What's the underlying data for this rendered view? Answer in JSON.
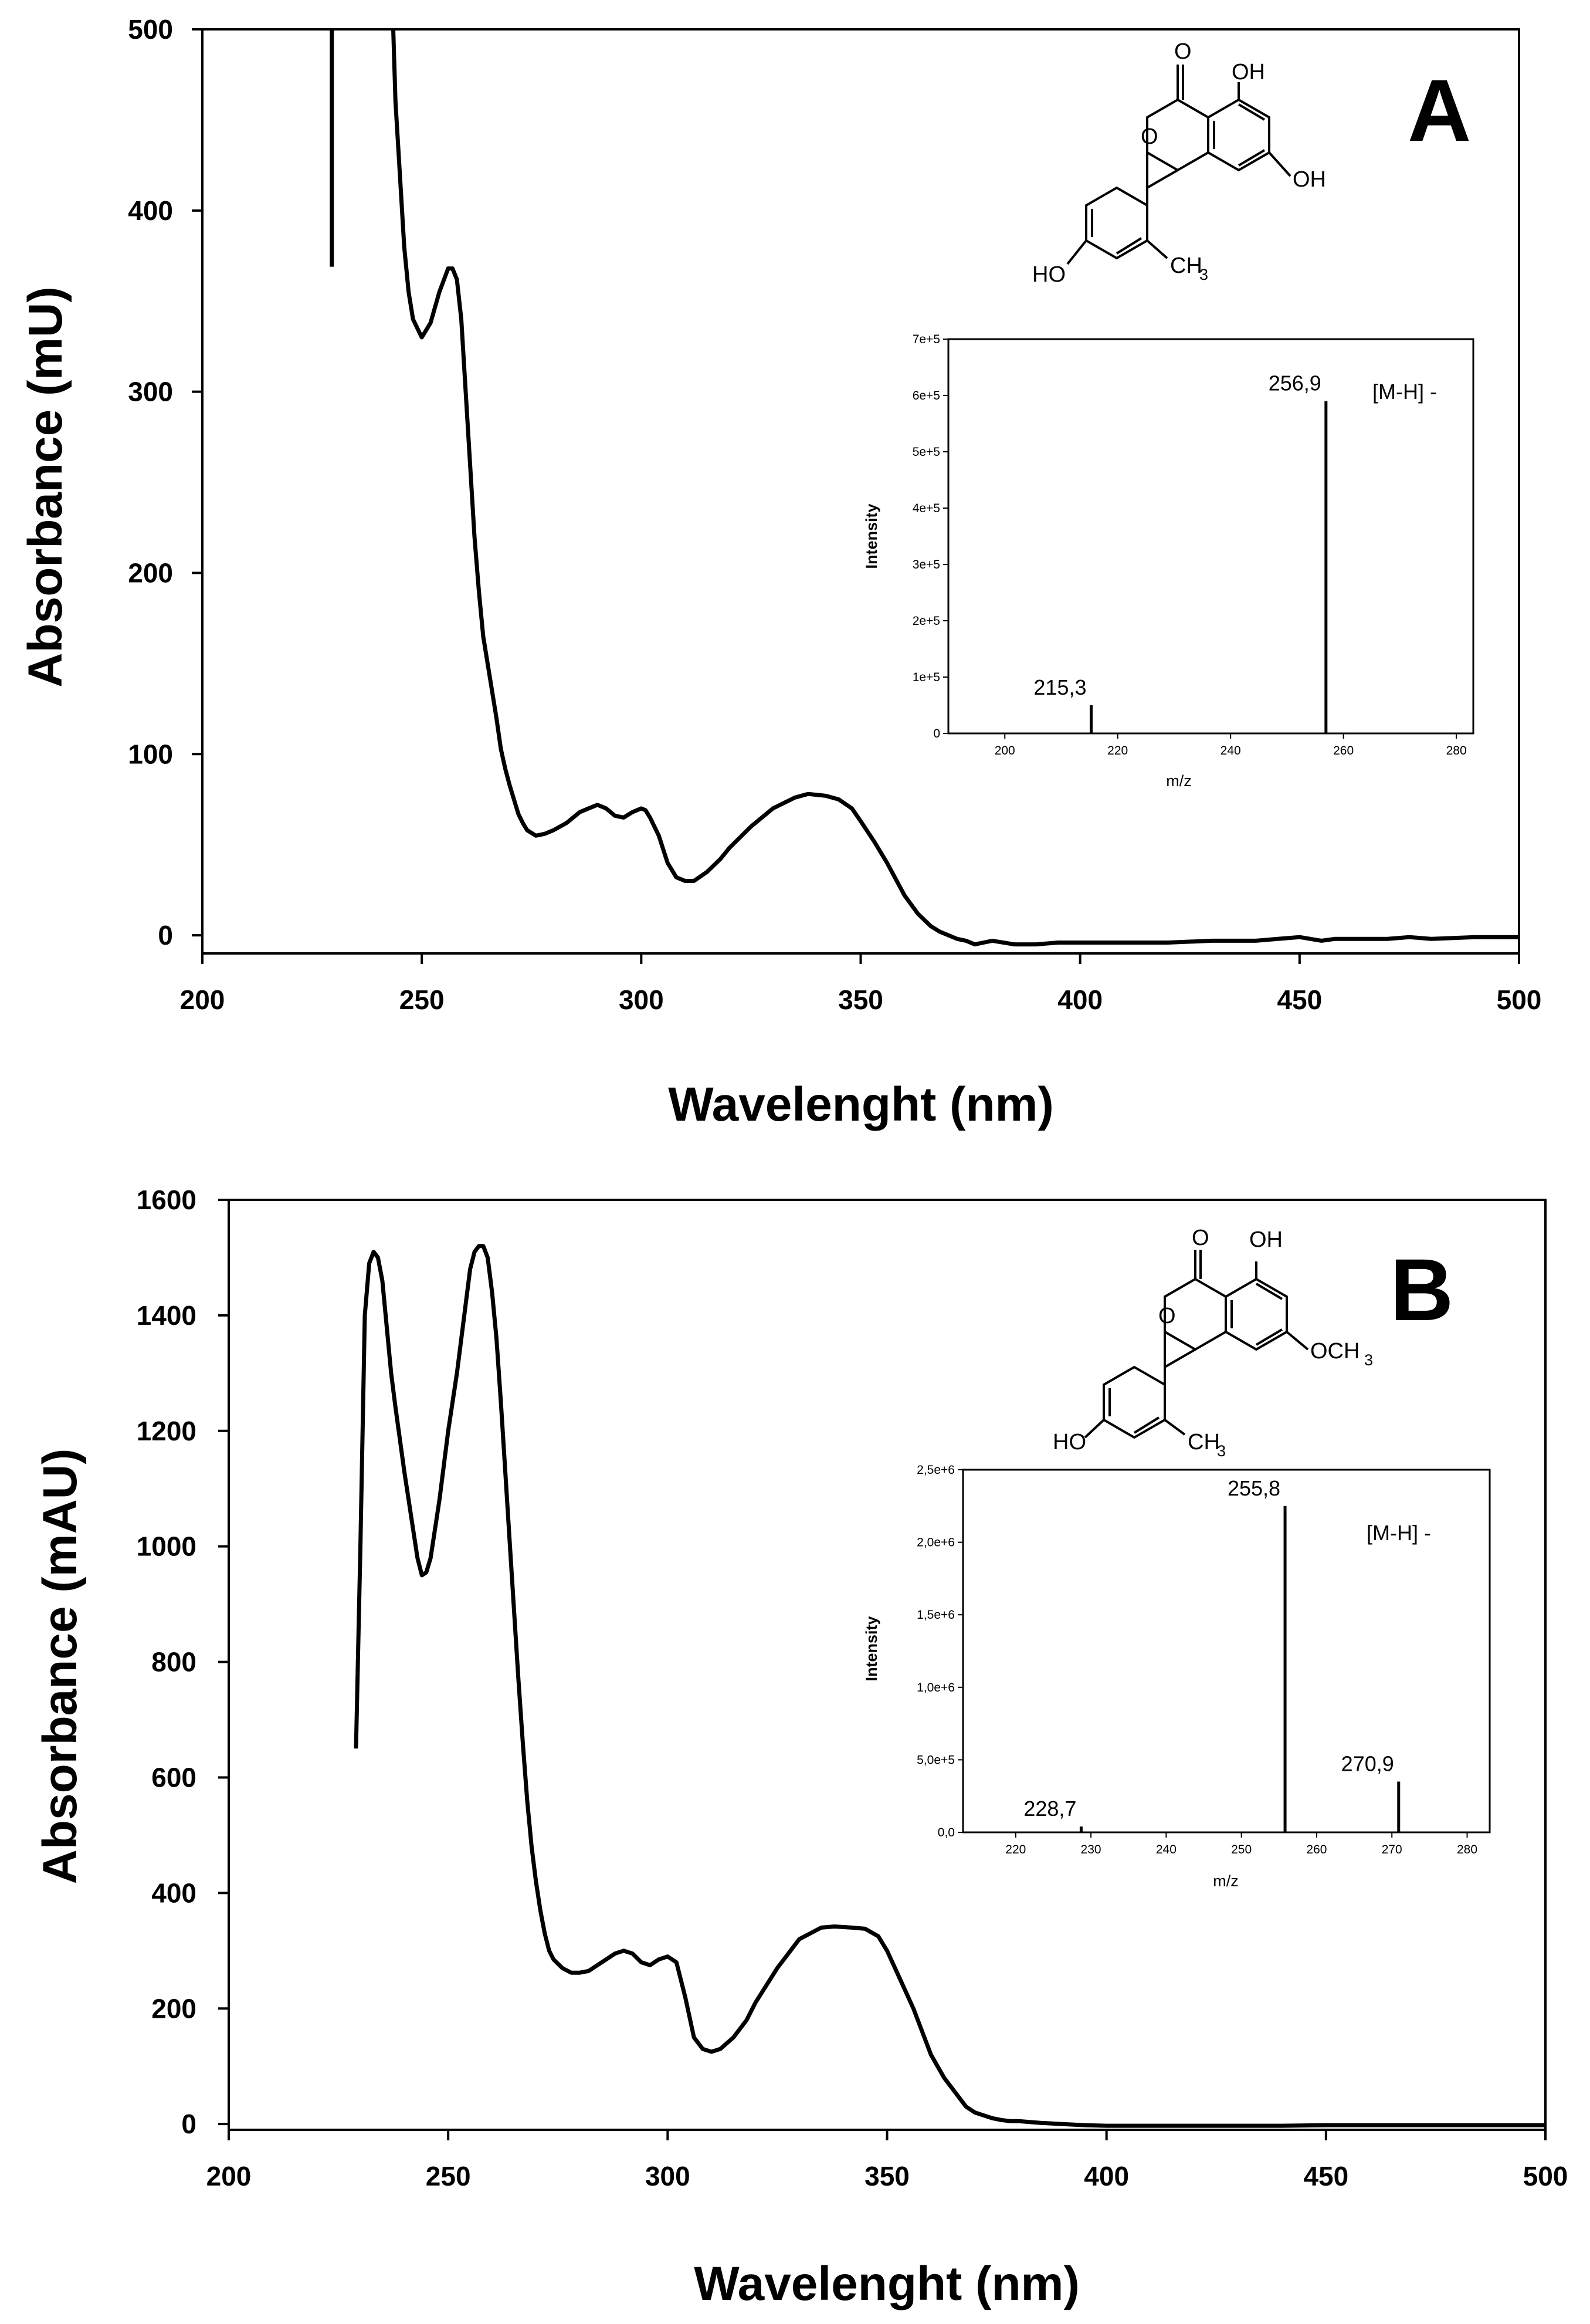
{
  "panels": [
    {
      "label": "A",
      "chart_data": {
        "type": "line",
        "title": "",
        "xlabel": "Wavelenght (nm)",
        "ylabel": "Absorbance (mU)",
        "xlim": [
          200,
          500
        ],
        "ylim": [
          -10,
          500
        ],
        "x_ticks": [
          "200",
          "250",
          "300",
          "350",
          "400",
          "450",
          "500"
        ],
        "y_ticks": [
          "0",
          "100",
          "200",
          "300",
          "400",
          "500"
        ],
        "x_tick_values": [
          200,
          250,
          300,
          350,
          400,
          450,
          500
        ],
        "y_tick_values": [
          0,
          100,
          200,
          300,
          400,
          500
        ],
        "series": [
          {
            "name": "UV spectrum (vertical trace)",
            "x": [
              229.5,
              229.5
            ],
            "y": [
              369,
              500
            ]
          },
          {
            "name": "UV spectrum",
            "x": [
              243.5,
              244,
              245,
              246,
              247,
              248,
              249,
              250,
              252,
              254,
              256,
              257,
              258,
              259,
              260,
              261,
              262,
              263,
              264,
              265,
              266,
              267,
              268,
              269,
              270,
              271,
              272,
              273,
              274,
              276,
              278,
              280,
              283,
              286,
              288,
              290,
              292,
              294,
              296,
              298,
              300,
              301,
              302,
              304,
              306,
              308,
              310,
              312,
              315,
              318,
              320,
              325,
              330,
              335,
              338,
              342,
              345,
              348,
              350,
              353,
              356,
              360,
              363,
              366,
              368,
              370,
              372,
              374,
              375,
              376,
              378,
              380,
              385,
              390,
              395,
              400,
              410,
              420,
              430,
              440,
              445,
              450,
              455,
              458,
              460,
              470,
              475,
              480,
              490,
              495,
              500
            ],
            "y": [
              500,
              460,
              420,
              380,
              355,
              340,
              335,
              330,
              338,
              355,
              368,
              368,
              362,
              340,
              300,
              260,
              220,
              190,
              165,
              150,
              135,
              120,
              103,
              92,
              83,
              75,
              67,
              62,
              58,
              55,
              56,
              58,
              62,
              68,
              70,
              72,
              70,
              66,
              65,
              68,
              70,
              69,
              65,
              55,
              40,
              32,
              30,
              30,
              35,
              42,
              48,
              60,
              70,
              76,
              78,
              77,
              75,
              70,
              63,
              52,
              40,
              22,
              12,
              5,
              2,
              0,
              -2,
              -3,
              -4,
              -5,
              -4,
              -3,
              -5,
              -5,
              -4,
              -4,
              -4,
              -4,
              -3,
              -3,
              -2,
              -1,
              -3,
              -2,
              -2,
              -2,
              -1,
              -2,
              -1,
              -1,
              -1
            ]
          }
        ],
        "inset": {
          "type": "bar",
          "xlabel": "m/z",
          "ylabel": "Intensity",
          "xlim": [
            190,
            283
          ],
          "ylim": [
            0,
            700000
          ],
          "x_ticks": [
            "200",
            "220",
            "240",
            "260",
            "280"
          ],
          "x_tick_values": [
            200,
            220,
            240,
            260,
            280
          ],
          "y_ticks": [
            "0",
            "1e+5",
            "2e+5",
            "3e+5",
            "4e+5",
            "5e+5",
            "6e+5",
            "7e+5"
          ],
          "y_tick_values": [
            0,
            100000,
            200000,
            300000,
            400000,
            500000,
            600000,
            700000
          ],
          "peaks": [
            {
              "mz": 215.3,
              "intensity": 50000,
              "label": "215,3"
            },
            {
              "mz": 256.9,
              "intensity": 590000,
              "label": "256,9"
            }
          ],
          "ion_label": "[M-H] -"
        }
      },
      "structure": {
        "labels": [
          "O",
          "O",
          "OH",
          "OH",
          "HO",
          "CH",
          "3"
        ]
      }
    },
    {
      "label": "B",
      "chart_data": {
        "type": "line",
        "title": "",
        "xlabel": "Wavelenght (nm)",
        "ylabel": "Absorbance (mAU)",
        "xlim": [
          200,
          500
        ],
        "ylim": [
          -10,
          1600
        ],
        "x_ticks": [
          "200",
          "250",
          "300",
          "350",
          "400",
          "450",
          "500"
        ],
        "y_ticks": [
          "0",
          "200",
          "400",
          "600",
          "800",
          "1000",
          "1200",
          "1400",
          "1600"
        ],
        "x_tick_values": [
          200,
          250,
          300,
          350,
          400,
          450,
          500
        ],
        "y_tick_values": [
          0,
          200,
          400,
          600,
          800,
          1000,
          1200,
          1400,
          1600
        ],
        "series": [
          {
            "name": "UV spectrum",
            "x": [
              229,
              230,
              231,
              232,
              233,
              234,
              235,
              236,
              237,
              238,
              240,
              242,
              243,
              244,
              245,
              246,
              248,
              250,
              252,
              254,
              255,
              256,
              257,
              258,
              259,
              260,
              261,
              262,
              263,
              264,
              265,
              266,
              267,
              268,
              269,
              270,
              271,
              272,
              273,
              274,
              276,
              278,
              280,
              282,
              284,
              286,
              288,
              290,
              292,
              294,
              296,
              298,
              300,
              302,
              304,
              306,
              308,
              310,
              312,
              315,
              318,
              320,
              325,
              330,
              335,
              338,
              342,
              345,
              348,
              350,
              353,
              356,
              360,
              363,
              366,
              368,
              370,
              372,
              374,
              376,
              378,
              380,
              385,
              390,
              395,
              400,
              410,
              420,
              430,
              440,
              450,
              460,
              470,
              480,
              490,
              495,
              500
            ],
            "y": [
              650,
              1000,
              1400,
              1490,
              1510,
              1500,
              1460,
              1380,
              1300,
              1240,
              1130,
              1030,
              980,
              950,
              955,
              980,
              1080,
              1200,
              1300,
              1420,
              1480,
              1510,
              1520,
              1520,
              1500,
              1440,
              1360,
              1250,
              1130,
              1010,
              890,
              770,
              660,
              560,
              480,
              420,
              370,
              330,
              300,
              285,
              270,
              262,
              262,
              265,
              275,
              285,
              295,
              300,
              295,
              280,
              275,
              285,
              290,
              280,
              220,
              150,
              130,
              125,
              130,
              150,
              180,
              210,
              270,
              320,
              340,
              342,
              340,
              338,
              325,
              300,
              250,
              200,
              120,
              80,
              50,
              30,
              20,
              15,
              10,
              7,
              5,
              5,
              2,
              0,
              -2,
              -3,
              -3,
              -3,
              -3,
              -3,
              -2,
              -2,
              -2,
              -2,
              -2,
              -2,
              -2
            ]
          }
        ],
        "inset": {
          "type": "bar",
          "xlabel": "m/z",
          "ylabel": "Intensity",
          "xlim": [
            213,
            283
          ],
          "ylim": [
            0,
            2500000
          ],
          "x_ticks": [
            "220",
            "230",
            "240",
            "250",
            "260",
            "270",
            "280"
          ],
          "x_tick_values": [
            220,
            230,
            240,
            250,
            260,
            270,
            280
          ],
          "y_ticks": [
            "0,0",
            "5,0e+5",
            "1,0e+6",
            "1,5e+6",
            "2,0e+6",
            "2,5e+6"
          ],
          "y_tick_values": [
            0,
            500000,
            1000000,
            1500000,
            2000000,
            2500000
          ],
          "peaks": [
            {
              "mz": 228.7,
              "intensity": 40000,
              "label": "228,7"
            },
            {
              "mz": 255.8,
              "intensity": 2250000,
              "label": "255,8"
            },
            {
              "mz": 270.9,
              "intensity": 350000,
              "label": "270,9"
            }
          ],
          "ion_label": "[M-H] -"
        }
      },
      "structure": {
        "labels": [
          "O",
          "O",
          "OH",
          "OCH",
          "3",
          "HO",
          "CH",
          "3"
        ]
      }
    }
  ]
}
